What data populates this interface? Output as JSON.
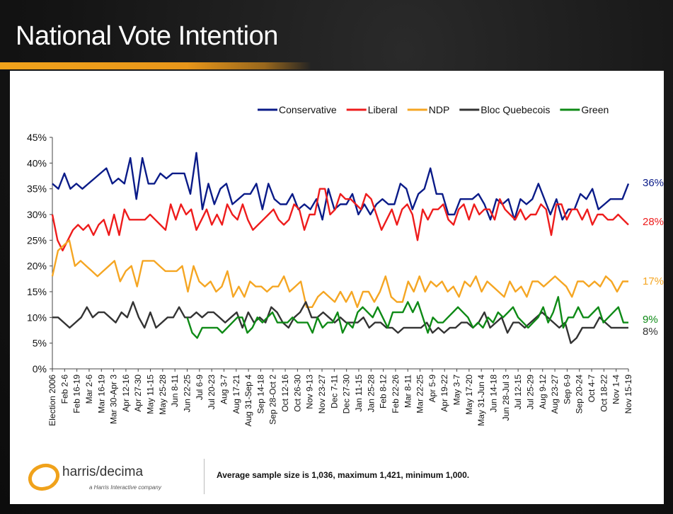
{
  "slide": {
    "title": "National Vote Intention",
    "footnote": "Average sample size is 1,036, maximum 1,421, minimum 1,000.",
    "logo_text": "harris/decima",
    "logo_subtext": "a Harris Interactive company"
  },
  "chart_data": {
    "type": "line",
    "title": "National Vote Intention",
    "ylim": [
      0,
      45
    ],
    "yticks": [
      "0%",
      "5%",
      "10%",
      "15%",
      "20%",
      "25%",
      "30%",
      "35%",
      "40%",
      "45%"
    ],
    "legend_position": "top-right",
    "x_labels": [
      "Election 2006",
      "Feb 2-6",
      "Feb 16-19",
      "Mar 2-6",
      "Mar 16-19",
      "Mar 30-Apr 3",
      "Apr 12-16",
      "Apr 27-30",
      "May 11-15",
      "May 25-28",
      "Jun 8-11",
      "Jun 22-25",
      "Jul 6-9",
      "Jul 20-23",
      "Aug 3-7",
      "Aug 17-21",
      "Aug 31-Sep 4",
      "Sep 14-18",
      "Sep 28-Oct 2",
      "Oct 12-16",
      "Oct 26-30",
      "Nov 9-13",
      "Nov 23-27",
      "Dec 7-11",
      "Dec 27-30",
      "Jan 11-15",
      "Jan 25-28",
      "Feb 8-12",
      "Feb 22-26",
      "Mar 8-11",
      "Mar 22-25",
      "Apr 5-9",
      "Apr 19-22",
      "May 3-7",
      "May 17-20",
      "May 31-Jun 4",
      "Jun 14-18",
      "Jun 28-Jul 3",
      "Jul 12-15",
      "Jul 25-29",
      "Aug 9-12",
      "Aug 23-27",
      "Sep 6-9",
      "Sep 20-24",
      "Oct 4-7",
      "Oct 18-22",
      "Nov 1-4",
      "Nov 15-19"
    ],
    "series": [
      {
        "name": "Conservative",
        "color": "#0a1b88",
        "end_label": "36%",
        "values": [
          36,
          35,
          38,
          35,
          36,
          35,
          36,
          37,
          38,
          39,
          36,
          37,
          36,
          41,
          33,
          41,
          36,
          36,
          38,
          37,
          38,
          38,
          38,
          34,
          42,
          31,
          36,
          32,
          35,
          36,
          32,
          33,
          34,
          34,
          36,
          31,
          36,
          33,
          32,
          32,
          34,
          31,
          32,
          31,
          33,
          29,
          35,
          31,
          32,
          32,
          34,
          30,
          32,
          30,
          32,
          33,
          32,
          32,
          36,
          35,
          31,
          34,
          35,
          39,
          34,
          34,
          30,
          30,
          33,
          33,
          33,
          34,
          32,
          29,
          33,
          32,
          33,
          29,
          33,
          32,
          33,
          36,
          33,
          30,
          33,
          29,
          31,
          31,
          34,
          33,
          35,
          31,
          32,
          33,
          33,
          33,
          36
        ]
      },
      {
        "name": "Liberal",
        "color": "#ee1c1c",
        "end_label": "28%",
        "values": [
          30,
          25,
          23,
          25,
          27,
          28,
          27,
          28,
          26,
          28,
          29,
          26,
          30,
          26,
          31,
          29,
          29,
          29,
          29,
          30,
          29,
          28,
          27,
          32,
          29,
          32,
          30,
          31,
          27,
          29,
          31,
          28,
          30,
          28,
          32,
          30,
          29,
          32,
          29,
          27,
          28,
          29,
          30,
          31,
          29,
          28,
          29,
          32,
          31,
          27,
          30,
          30,
          35,
          35,
          30,
          31,
          34,
          33,
          33,
          32,
          31,
          34,
          33,
          30,
          27,
          29,
          31,
          28,
          31,
          32,
          30,
          25,
          31,
          29,
          31,
          31,
          32,
          29,
          28,
          31,
          32,
          29,
          32,
          30,
          31,
          31,
          29,
          33,
          31,
          30,
          29,
          31,
          29,
          30,
          30,
          32,
          31,
          26,
          32,
          32,
          29,
          31,
          31,
          29,
          31,
          28,
          30,
          30,
          29,
          29,
          30,
          29,
          28
        ]
      },
      {
        "name": "NDP",
        "color": "#f5a623",
        "end_label": "17%",
        "values": [
          18,
          23,
          24,
          25,
          20,
          21,
          20,
          19,
          18,
          19,
          20,
          21,
          17,
          19,
          20,
          16,
          21,
          21,
          21,
          20,
          19,
          19,
          19,
          20,
          15,
          20,
          17,
          16,
          17,
          15,
          16,
          19,
          14,
          16,
          14,
          17,
          16,
          16,
          15,
          16,
          16,
          18,
          15,
          16,
          17,
          12,
          12,
          14,
          15,
          14,
          13,
          15,
          13,
          15,
          12,
          15,
          15,
          13,
          15,
          18,
          14,
          13,
          13,
          17,
          15,
          18,
          15,
          17,
          16,
          17,
          15,
          16,
          14,
          17,
          16,
          18,
          15,
          17,
          16,
          15,
          14,
          17,
          15,
          16,
          14,
          17,
          17,
          16,
          17,
          18,
          17,
          16,
          14,
          17,
          17,
          16,
          17,
          16,
          18,
          17,
          15,
          17,
          17
        ]
      },
      {
        "name": "Bloc Quebecois",
        "color": "#333333",
        "end_label": "8%",
        "values": [
          10,
          10,
          9,
          8,
          9,
          10,
          12,
          10,
          11,
          11,
          10,
          9,
          11,
          10,
          13,
          10,
          8,
          11,
          8,
          9,
          10,
          10,
          12,
          10,
          10,
          11,
          10,
          11,
          11,
          10,
          9,
          10,
          11,
          8,
          11,
          9,
          10,
          9,
          12,
          11,
          9,
          8,
          10,
          11,
          13,
          10,
          10,
          11,
          10,
          9,
          10,
          9,
          9,
          9,
          10,
          8,
          9,
          9,
          8,
          8,
          7,
          8,
          8,
          8,
          8,
          9,
          7,
          8,
          7,
          8,
          8,
          9,
          9,
          8,
          9,
          11,
          8,
          9,
          10,
          7,
          9,
          9,
          8,
          9,
          10,
          11,
          10,
          9,
          8,
          9,
          5,
          6,
          8,
          8,
          8,
          10,
          9,
          8,
          8,
          8,
          8
        ]
      },
      {
        "name": "Green",
        "color": "#0e8a16",
        "end_label": "9%",
        "values": [
          10,
          7,
          6,
          8,
          8,
          8,
          8,
          7,
          8,
          9,
          10,
          10,
          7,
          8,
          10,
          9,
          10,
          11,
          9,
          9,
          9,
          10,
          9,
          9,
          9,
          7,
          10,
          8,
          9,
          9,
          11,
          7,
          9,
          8,
          11,
          12,
          11,
          10,
          12,
          10,
          8,
          11,
          11,
          11,
          13,
          11,
          13,
          10,
          7,
          10,
          9,
          9,
          10,
          11,
          12,
          11,
          10,
          8,
          9,
          8,
          10,
          9,
          11,
          10,
          11,
          12,
          10,
          9,
          8,
          9,
          10,
          12,
          9,
          11,
          14,
          8,
          10,
          10,
          12,
          10,
          10,
          11,
          12,
          9,
          10,
          11,
          12,
          9,
          9
        ]
      }
    ]
  }
}
